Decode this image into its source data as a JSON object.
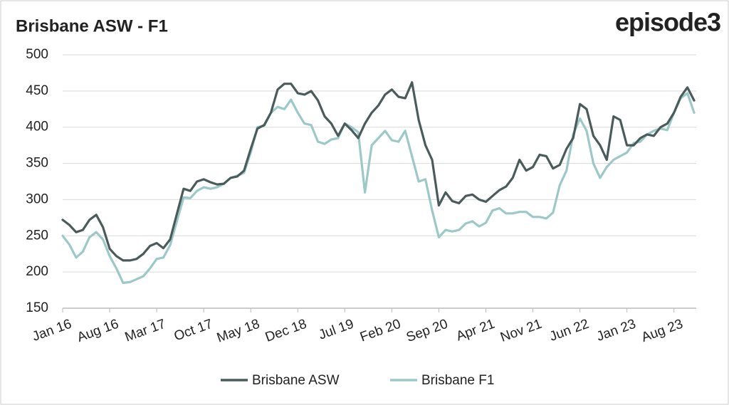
{
  "chart_data": {
    "type": "line",
    "title": "Brisbane ASW - F1",
    "brand": "episode3",
    "categories": [
      "Jan 16",
      null,
      null,
      null,
      null,
      null,
      null,
      "Aug 16",
      null,
      null,
      null,
      null,
      null,
      null,
      "Mar 17",
      null,
      null,
      null,
      null,
      null,
      null,
      "Oct 17",
      null,
      null,
      null,
      null,
      null,
      null,
      "May 18",
      null,
      null,
      null,
      null,
      null,
      null,
      "Dec 18",
      null,
      null,
      null,
      null,
      null,
      null,
      "Jul 19",
      null,
      null,
      null,
      null,
      null,
      null,
      "Feb 20",
      null,
      null,
      null,
      null,
      null,
      null,
      "Sep 20",
      null,
      null,
      null,
      null,
      null,
      null,
      "Apr 21",
      null,
      null,
      null,
      null,
      null,
      null,
      "Nov 21",
      null,
      null,
      null,
      null,
      null,
      null,
      "Jun 22",
      null,
      null,
      null,
      null,
      null,
      null,
      "Jan 23",
      null,
      null,
      null,
      null,
      null,
      null,
      "Aug 23",
      null,
      null,
      null
    ],
    "series": [
      {
        "name": "Brisbane ASW",
        "color": "#4b5b5b",
        "values": [
          272,
          265,
          255,
          258,
          272,
          279,
          262,
          232,
          222,
          216,
          216,
          218,
          225,
          236,
          240,
          233,
          245,
          280,
          315,
          312,
          325,
          328,
          324,
          321,
          322,
          330,
          332,
          340,
          370,
          398,
          403,
          420,
          452,
          460,
          460,
          447,
          445,
          450,
          437,
          415,
          405,
          388,
          405,
          396,
          385,
          405,
          420,
          430,
          445,
          452,
          442,
          440,
          462,
          410,
          375,
          355,
          292,
          310,
          298,
          295,
          305,
          307,
          300,
          297,
          305,
          313,
          318,
          330,
          355,
          340,
          345,
          362,
          360,
          343,
          348,
          370,
          385,
          432,
          425,
          388,
          375,
          355,
          415,
          410,
          375,
          375,
          385,
          390,
          388,
          400,
          405,
          420,
          442,
          455,
          437
        ]
      },
      {
        "name": "Brisbane F1",
        "color": "#9dc8c8",
        "values": [
          250,
          238,
          220,
          228,
          248,
          255,
          245,
          222,
          205,
          185,
          186,
          190,
          194,
          205,
          218,
          220,
          237,
          270,
          303,
          302,
          312,
          317,
          315,
          317,
          322,
          330,
          333,
          337,
          365,
          400,
          402,
          420,
          428,
          425,
          438,
          420,
          405,
          403,
          380,
          377,
          383,
          385,
          405,
          400,
          393,
          310,
          375,
          385,
          395,
          382,
          380,
          395,
          360,
          325,
          328,
          285,
          248,
          258,
          256,
          258,
          267,
          270,
          263,
          268,
          285,
          288,
          281,
          281,
          283,
          283,
          276,
          276,
          274,
          282,
          320,
          340,
          390,
          412,
          395,
          350,
          330,
          345,
          355,
          360,
          365,
          378,
          380,
          390,
          395,
          398,
          396,
          420,
          440,
          447,
          420
        ]
      }
    ],
    "ylim": [
      150,
      500
    ],
    "yticks": [
      150,
      200,
      250,
      300,
      350,
      400,
      450,
      500
    ],
    "grid": true
  }
}
